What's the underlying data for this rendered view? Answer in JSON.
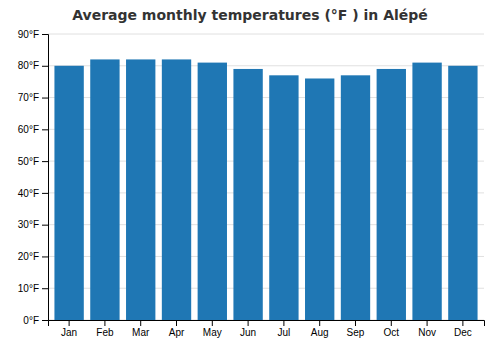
{
  "chart_data": {
    "type": "bar",
    "title": "Average monthly temperatures (°F ) in Alépé",
    "categories": [
      "Jan",
      "Feb",
      "Mar",
      "Apr",
      "May",
      "Jun",
      "Jul",
      "Aug",
      "Sep",
      "Oct",
      "Nov",
      "Dec"
    ],
    "values": [
      80,
      82,
      82,
      82,
      81,
      79,
      77,
      76,
      77,
      79,
      81,
      80
    ],
    "ylim": [
      0,
      90
    ],
    "yticks": [
      {
        "value": 0,
        "label": "0°F"
      },
      {
        "value": 10,
        "label": "10°F"
      },
      {
        "value": 20,
        "label": "20°F"
      },
      {
        "value": 30,
        "label": "30°F"
      },
      {
        "value": 40,
        "label": "40°F"
      },
      {
        "value": 50,
        "label": "50°F"
      },
      {
        "value": 60,
        "label": "60°F"
      },
      {
        "value": 70,
        "label": "70°F"
      },
      {
        "value": 80,
        "label": "80°F"
      },
      {
        "value": 90,
        "label": "90°F"
      }
    ],
    "grid": true
  }
}
